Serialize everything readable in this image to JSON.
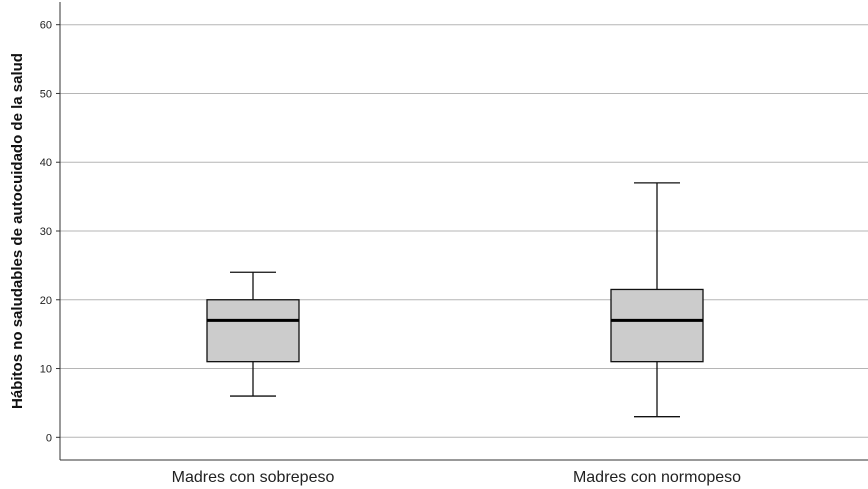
{
  "chart_data": {
    "type": "box",
    "title": "",
    "xlabel": "",
    "ylabel": "Hábitos no saludables de autocuidado de la salud",
    "ylim": [
      -3.3,
      63.3
    ],
    "yticks": [
      0,
      10,
      20,
      30,
      40,
      50,
      60
    ],
    "grid": true,
    "categories": [
      "Madres con sobrepeso",
      "Madres con normopeso"
    ],
    "boxes": [
      {
        "category": "Madres con sobrepeso",
        "min": 6,
        "q1": 11,
        "median": 17,
        "q3": 20,
        "max": 24
      },
      {
        "category": "Madres con normopeso",
        "min": 3,
        "q1": 11,
        "median": 17,
        "q3": 21.5,
        "max": 37
      }
    ],
    "colors": {
      "box_fill": "#cccccc",
      "stroke": "#111111",
      "grid": "#b5b5b5",
      "axis": "#333333"
    }
  }
}
